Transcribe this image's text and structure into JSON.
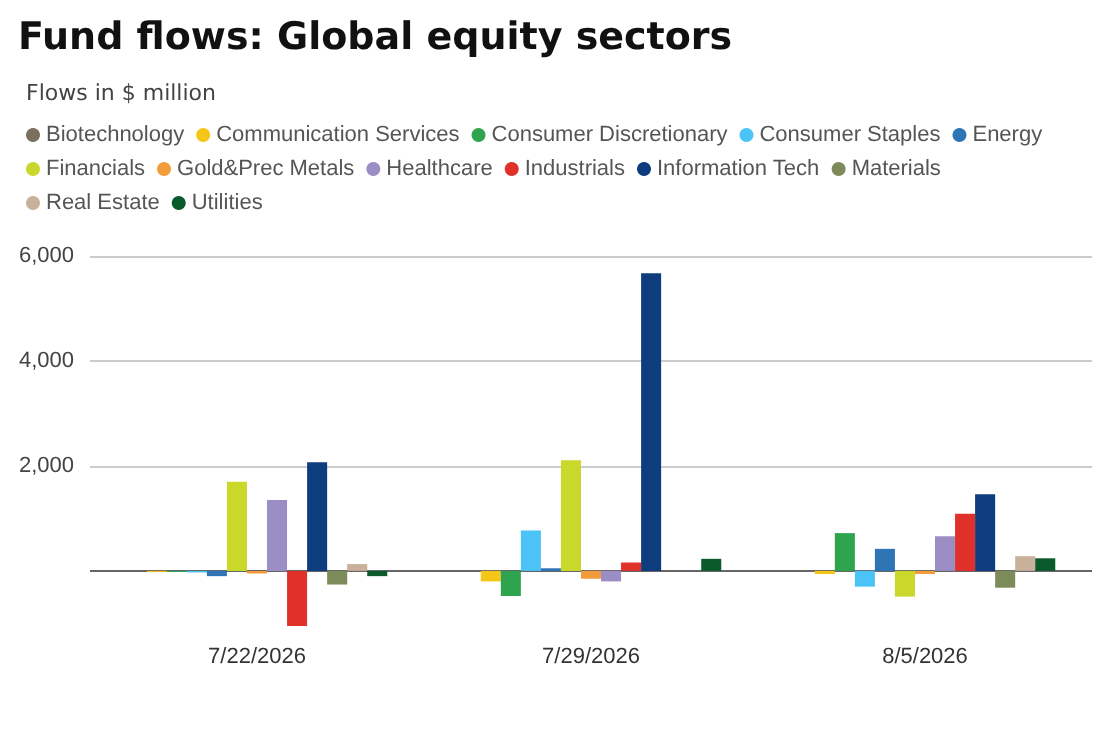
{
  "chart_data": {
    "type": "bar",
    "title": "Fund flows: Global equity sectors",
    "subtitle": "Flows in $ million",
    "categories": [
      "7/22/2026",
      "7/29/2026",
      "8/5/2026"
    ],
    "series": [
      {
        "name": "Biotechnology",
        "color": "#7b6f5e",
        "values": [
          0,
          0,
          0
        ]
      },
      {
        "name": "Communication Services",
        "color": "#f5c518",
        "values": [
          -20,
          -200,
          -60
        ]
      },
      {
        "name": "Consumer Discretionary",
        "color": "#2ea44f",
        "values": [
          -20,
          -480,
          720
        ]
      },
      {
        "name": "Consumer Staples",
        "color": "#4cc3f7",
        "values": [
          -30,
          770,
          -300
        ]
      },
      {
        "name": "Energy",
        "color": "#2e75b6",
        "values": [
          -100,
          50,
          420
        ]
      },
      {
        "name": "Financials",
        "color": "#c9d82b",
        "values": [
          1700,
          2110,
          -490
        ]
      },
      {
        "name": "Gold&Prec Metals",
        "color": "#f39c3c",
        "values": [
          -50,
          -150,
          -60
        ]
      },
      {
        "name": "Healthcare",
        "color": "#9b8ec4",
        "values": [
          1350,
          -200,
          660
        ]
      },
      {
        "name": "Industrials",
        "color": "#e0302a",
        "values": [
          -1050,
          160,
          1090
        ]
      },
      {
        "name": "Information Tech",
        "color": "#0d3c7f",
        "values": [
          2070,
          5670,
          1460
        ]
      },
      {
        "name": "Materials",
        "color": "#7d8a5a",
        "values": [
          -260,
          0,
          -320
        ]
      },
      {
        "name": "Real Estate",
        "color": "#c8b09a",
        "values": [
          130,
          0,
          280
        ]
      },
      {
        "name": "Utilities",
        "color": "#0b5a2c",
        "values": [
          -100,
          230,
          240
        ]
      }
    ],
    "ylim": [
      -1050,
      6000
    ],
    "yticks": [
      {
        "value": 0,
        "label": null
      },
      {
        "value": 2000,
        "label": "2,000"
      },
      {
        "value": 4000,
        "label": "4,000"
      },
      {
        "value": 6000,
        "label": "6,000"
      }
    ],
    "grid": "y",
    "legend": "top left"
  }
}
